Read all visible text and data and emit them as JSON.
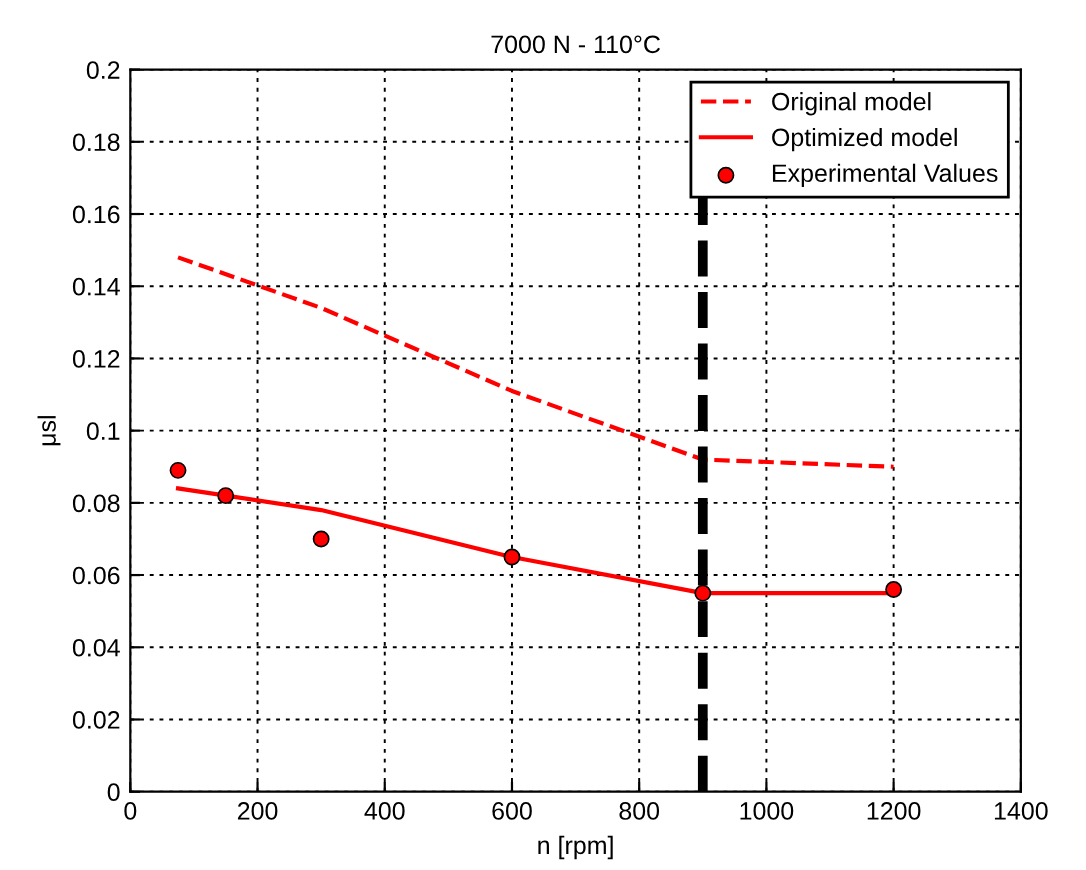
{
  "chart_data": {
    "type": "line",
    "title": "7000 N - 110°C",
    "xlabel": "n [rpm]",
    "ylabel": "μsl",
    "xlim": [
      0,
      1400
    ],
    "xticks": [
      0,
      200,
      400,
      600,
      800,
      1000,
      1200,
      1400
    ],
    "ylim": [
      0,
      0.2
    ],
    "yticks": [
      0,
      0.02,
      0.04,
      0.06,
      0.08,
      0.1,
      0.12,
      0.14,
      0.16,
      0.18,
      0.2
    ],
    "grid": true,
    "legend": "top right",
    "series": [
      {
        "name": "Original model",
        "color": "#ff0000",
        "line_style": "dashed",
        "marker": "none",
        "x": [
          75,
          300,
          600,
          900,
          1200
        ],
        "values": [
          0.148,
          0.134,
          0.111,
          0.092,
          0.09
        ]
      },
      {
        "name": "Optimized model",
        "color": "#ff0000",
        "line_style": "solid",
        "marker": "none",
        "x": [
          75,
          300,
          600,
          900,
          1200
        ],
        "values": [
          0.084,
          0.078,
          0.065,
          0.055,
          0.055
        ]
      },
      {
        "name": "Experimental Values",
        "color": "#ff0000",
        "type": "scatter",
        "marker": "circle",
        "x": [
          75,
          150,
          300,
          600,
          900,
          1200
        ],
        "values": [
          0.089,
          0.082,
          0.07,
          0.065,
          0.055,
          0.056
        ]
      }
    ],
    "ref_lines": [
      {
        "axis": "x",
        "value": 900,
        "color": "#000000",
        "line_style": "dashed"
      }
    ]
  }
}
